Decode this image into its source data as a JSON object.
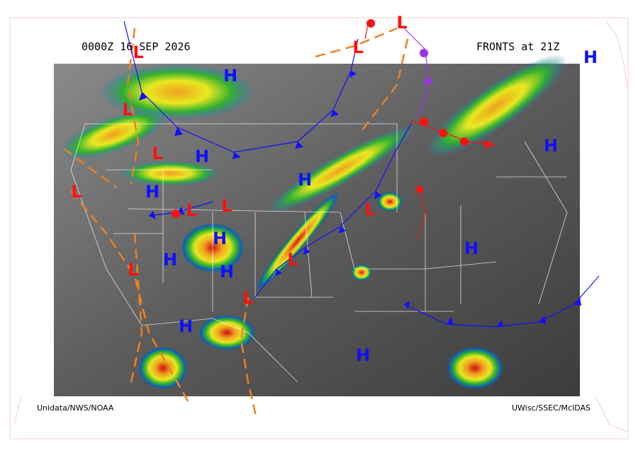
{
  "header": {
    "valid_time": "0000Z 16 SEP 2026",
    "fronts_time": "FRONTS at 21Z"
  },
  "credits": {
    "left": "Unidata/NWS/NOAA",
    "right": "UWisc/SSEC/McIDAS"
  },
  "pressure_centers": [
    {
      "label": "L",
      "color": "#ff1010"
    },
    {
      "label": "L",
      "color": "#ff1010"
    },
    {
      "label": "L",
      "color": "#ff1010"
    },
    {
      "label": "L",
      "color": "#ff1010"
    },
    {
      "label": "L",
      "color": "#ff1010"
    },
    {
      "label": "L",
      "color": "#ff1010"
    },
    {
      "label": "L",
      "color": "#ff1010"
    },
    {
      "label": "L",
      "color": "#ff1010"
    },
    {
      "label": "L",
      "color": "#ff1010"
    },
    {
      "label": "L",
      "color": "#ff1010"
    },
    {
      "label": "L",
      "color": "#ff1010"
    },
    {
      "label": "L",
      "color": "#ff1010"
    },
    {
      "label": "H",
      "color": "#1010ff"
    },
    {
      "label": "H",
      "color": "#1010ff"
    },
    {
      "label": "H",
      "color": "#1010ff"
    },
    {
      "label": "H",
      "color": "#1010ff"
    },
    {
      "label": "H",
      "color": "#1010ff"
    },
    {
      "label": "H",
      "color": "#1010ff"
    },
    {
      "label": "H",
      "color": "#1010ff"
    },
    {
      "label": "H",
      "color": "#1010ff"
    },
    {
      "label": "H",
      "color": "#1010ff"
    },
    {
      "label": "H",
      "color": "#1010ff"
    },
    {
      "label": "H",
      "color": "#1010ff"
    },
    {
      "label": "H",
      "color": "#1010ff"
    }
  ]
}
